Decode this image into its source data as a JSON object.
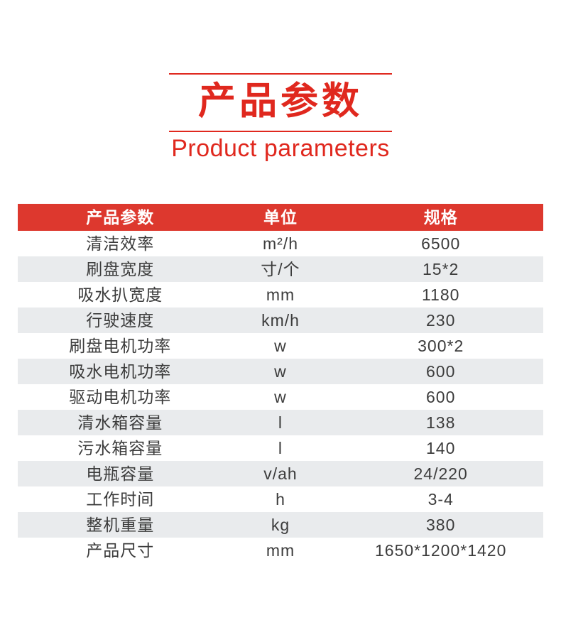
{
  "colors": {
    "accent_red": "#e0281e",
    "header_bar": "#dd382e",
    "row_alt_bg": "#e9ebed",
    "row_text": "#3c3c3c"
  },
  "title": {
    "zh": "产品参数",
    "en": "Product parameters"
  },
  "table": {
    "headers": {
      "param": "产品参数",
      "unit": "单位",
      "spec": "规格"
    },
    "rows": [
      {
        "label": "清洁效率",
        "unit": "m²/h",
        "value": "6500"
      },
      {
        "label": "刷盘宽度",
        "unit": "寸/个",
        "value": "15*2"
      },
      {
        "label": "吸水扒宽度",
        "unit": "mm",
        "value": "1180"
      },
      {
        "label": "行驶速度",
        "unit": "km/h",
        "value": "230"
      },
      {
        "label": "刷盘电机功率",
        "unit": "w",
        "value": "300*2"
      },
      {
        "label": "吸水电机功率",
        "unit": "w",
        "value": "600"
      },
      {
        "label": "驱动电机功率",
        "unit": "w",
        "value": "600"
      },
      {
        "label": "清水箱容量",
        "unit": "l",
        "value": "138"
      },
      {
        "label": "污水箱容量",
        "unit": "l",
        "value": "140"
      },
      {
        "label": "电瓶容量",
        "unit": "v/ah",
        "value": "24/220"
      },
      {
        "label": "工作时间",
        "unit": "h",
        "value": "3-4"
      },
      {
        "label": "整机重量",
        "unit": "kg",
        "value": "380"
      },
      {
        "label": "产品尺寸",
        "unit": "mm",
        "value": "1650*1200*1420"
      }
    ]
  }
}
